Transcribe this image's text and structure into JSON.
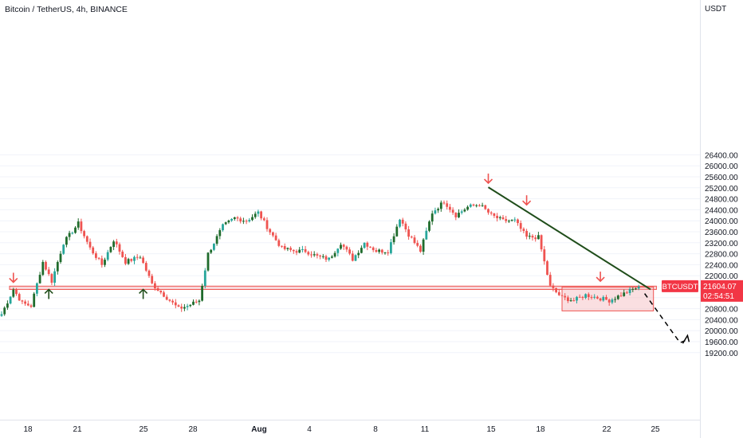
{
  "title": "Bitcoin / TetherUS, 4h, BINANCE",
  "chart_data": {
    "type": "candlestick",
    "symbol": "BTCUSDT",
    "interval": "4h",
    "exchange": "BINANCE",
    "y_axis_unit": "USDT",
    "y_ticks": [
      19200,
      19600,
      20000,
      20400,
      20800,
      21200,
      21600,
      22000,
      22400,
      22800,
      23200,
      23600,
      24000,
      24400,
      24800,
      25200,
      25600,
      26000,
      26400
    ],
    "y_tick_labels": [
      "19200.00",
      "19600.00",
      "20000.00",
      "20400.00",
      "20800.00",
      "21200.00",
      "21600.00",
      "22000.00",
      "22400.00",
      "22800.00",
      "23200.00",
      "23600.00",
      "24000.00",
      "24400.00",
      "24800.00",
      "25200.00",
      "25600.00",
      "26000.00",
      "26400.00"
    ],
    "x_tick_labels": [
      "18",
      "21",
      "25",
      "28",
      "Aug",
      "4",
      "8",
      "11",
      "15",
      "18",
      "22",
      "25"
    ],
    "price_label": {
      "symbol": "BTCUSDT",
      "price": "21604.07",
      "countdown": "02:54:51"
    },
    "anchors": [
      {
        "i": 0,
        "p": 20600
      },
      {
        "i": 4,
        "p": 21500
      },
      {
        "i": 7,
        "p": 21000
      },
      {
        "i": 10,
        "p": 20900
      },
      {
        "i": 14,
        "p": 22500
      },
      {
        "i": 17,
        "p": 21800
      },
      {
        "i": 21,
        "p": 23200
      },
      {
        "i": 26,
        "p": 23900
      },
      {
        "i": 30,
        "p": 23000
      },
      {
        "i": 34,
        "p": 22400
      },
      {
        "i": 38,
        "p": 23300
      },
      {
        "i": 42,
        "p": 22500
      },
      {
        "i": 47,
        "p": 22700
      },
      {
        "i": 51,
        "p": 21700
      },
      {
        "i": 55,
        "p": 21300
      },
      {
        "i": 60,
        "p": 20800
      },
      {
        "i": 63,
        "p": 20900
      },
      {
        "i": 67,
        "p": 21100
      },
      {
        "i": 70,
        "p": 22800
      },
      {
        "i": 75,
        "p": 23800
      },
      {
        "i": 79,
        "p": 24100
      },
      {
        "i": 83,
        "p": 24000
      },
      {
        "i": 87,
        "p": 24300
      },
      {
        "i": 91,
        "p": 23600
      },
      {
        "i": 95,
        "p": 23000
      },
      {
        "i": 99,
        "p": 22900
      },
      {
        "i": 103,
        "p": 22900
      },
      {
        "i": 107,
        "p": 22700
      },
      {
        "i": 111,
        "p": 22600
      },
      {
        "i": 115,
        "p": 23200
      },
      {
        "i": 119,
        "p": 22600
      },
      {
        "i": 123,
        "p": 23200
      },
      {
        "i": 127,
        "p": 22900
      },
      {
        "i": 131,
        "p": 22900
      },
      {
        "i": 135,
        "p": 24100
      },
      {
        "i": 138,
        "p": 23500
      },
      {
        "i": 142,
        "p": 22900
      },
      {
        "i": 146,
        "p": 24300
      },
      {
        "i": 150,
        "p": 24700
      },
      {
        "i": 154,
        "p": 24200
      },
      {
        "i": 158,
        "p": 24500
      },
      {
        "i": 162,
        "p": 24600
      },
      {
        "i": 166,
        "p": 24200
      },
      {
        "i": 170,
        "p": 24000
      },
      {
        "i": 174,
        "p": 24000
      },
      {
        "i": 178,
        "p": 23400
      },
      {
        "i": 182,
        "p": 23400
      },
      {
        "i": 186,
        "p": 21600
      },
      {
        "i": 190,
        "p": 21200
      },
      {
        "i": 194,
        "p": 21100
      },
      {
        "i": 198,
        "p": 21300
      },
      {
        "i": 202,
        "p": 21200
      },
      {
        "i": 206,
        "p": 21100
      },
      {
        "i": 210,
        "p": 21300
      },
      {
        "i": 214,
        "p": 21500
      },
      {
        "i": 216,
        "p": 21600
      }
    ],
    "support_zone": {
      "from_index": 0,
      "to_index": 222,
      "low": 21500,
      "high": 21620
    },
    "consolidation_box": {
      "from_index": 190,
      "to_index": 221,
      "low": 20720,
      "high": 21590
    },
    "trendline": {
      "from": {
        "i": 165,
        "p": 25220
      },
      "to": {
        "i": 220,
        "p": 21500
      }
    },
    "projection": [
      {
        "i": 218,
        "p": 21350
      },
      {
        "i": 230,
        "p": 19560
      },
      {
        "i": 232,
        "p": 19650
      }
    ],
    "markers": [
      {
        "type": "down",
        "i": 4,
        "p": 21760
      },
      {
        "type": "up",
        "i": 16,
        "p": 21500
      },
      {
        "type": "up",
        "i": 48,
        "p": 21500
      },
      {
        "type": "down",
        "i": 165,
        "p": 25370
      },
      {
        "type": "down",
        "i": 178,
        "p": 24580
      },
      {
        "type": "down",
        "i": 203,
        "p": 21800
      }
    ],
    "colors": {
      "up": "#26a69a",
      "up_dark": "#1f6b2c",
      "down": "#ef5350",
      "zone_fill": "#f4b9bd",
      "zone_stroke": "#ef5350",
      "trend": "#1f4d1a",
      "grid": "#f0f3fa",
      "axis_text": "#131722",
      "price_label_bg": "#f23645"
    }
  }
}
